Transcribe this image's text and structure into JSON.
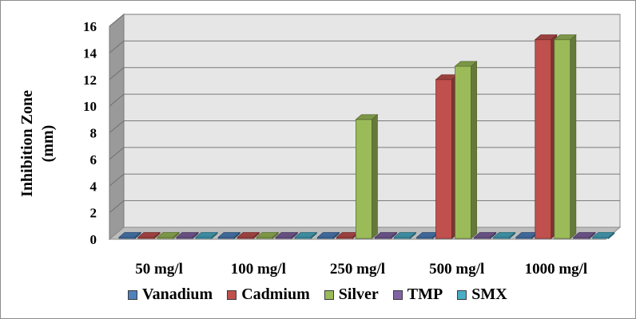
{
  "chart_data": {
    "type": "bar",
    "categories": [
      "50 mg/l",
      "100 mg/l",
      "250 mg/l",
      "500 mg/l",
      "1000 mg/l"
    ],
    "series": [
      {
        "name": "Vanadium",
        "values": [
          0,
          0,
          0,
          0,
          0
        ],
        "color": "#4f81bd"
      },
      {
        "name": "Cadmium",
        "values": [
          0,
          0,
          0,
          12,
          15
        ],
        "color": "#c0504d"
      },
      {
        "name": "Silver",
        "values": [
          0,
          0,
          9,
          13,
          15
        ],
        "color": "#9bbb59"
      },
      {
        "name": "TMP",
        "values": [
          0,
          0,
          0,
          0,
          0
        ],
        "color": "#8064a2"
      },
      {
        "name": "SMX",
        "values": [
          0,
          0,
          0,
          0,
          0
        ],
        "color": "#4bacc6"
      }
    ],
    "ylabel_line1": "Inhibition Zone",
    "ylabel_line2": "(mm)",
    "ylim": [
      0,
      16
    ],
    "yticks": [
      "0",
      "2",
      "4",
      "6",
      "8",
      "10",
      "12",
      "14",
      "16"
    ],
    "grid": true,
    "legend_position": "bottom",
    "style": "3d-clustered-column"
  }
}
